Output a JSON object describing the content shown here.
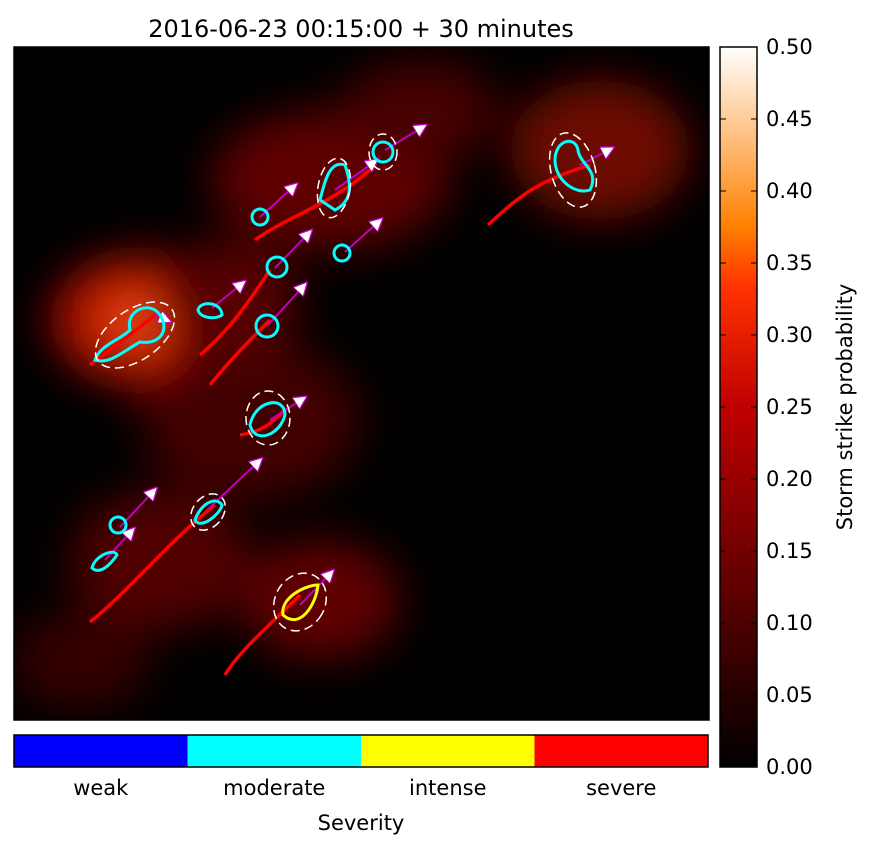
{
  "title": "2016-06-23 00:15:00 + 30 minutes",
  "colorbar": {
    "label": "Storm strike probability",
    "lim": [
      0,
      0.5
    ],
    "ticks": [
      {
        "value": 0,
        "label": "0.00"
      },
      {
        "value": 0.05,
        "label": "0.05"
      },
      {
        "value": 0.1,
        "label": "0.10"
      },
      {
        "value": 0.15,
        "label": "0.15"
      },
      {
        "value": 0.2,
        "label": "0.20"
      },
      {
        "value": 0.25,
        "label": "0.25"
      },
      {
        "value": 0.3,
        "label": "0.30"
      },
      {
        "value": 0.35,
        "label": "0.35"
      },
      {
        "value": 0.4,
        "label": "0.40"
      },
      {
        "value": 0.45,
        "label": "0.45"
      },
      {
        "value": 0.5,
        "label": "0.50"
      }
    ]
  },
  "severity": {
    "label": "Severity",
    "categories": [
      {
        "name": "weak",
        "color": "#0000ff"
      },
      {
        "name": "moderate",
        "color": "#00ffff"
      },
      {
        "name": "intense",
        "color": "#ffff00"
      },
      {
        "name": "severe",
        "color": "#ff0000"
      }
    ]
  }
}
